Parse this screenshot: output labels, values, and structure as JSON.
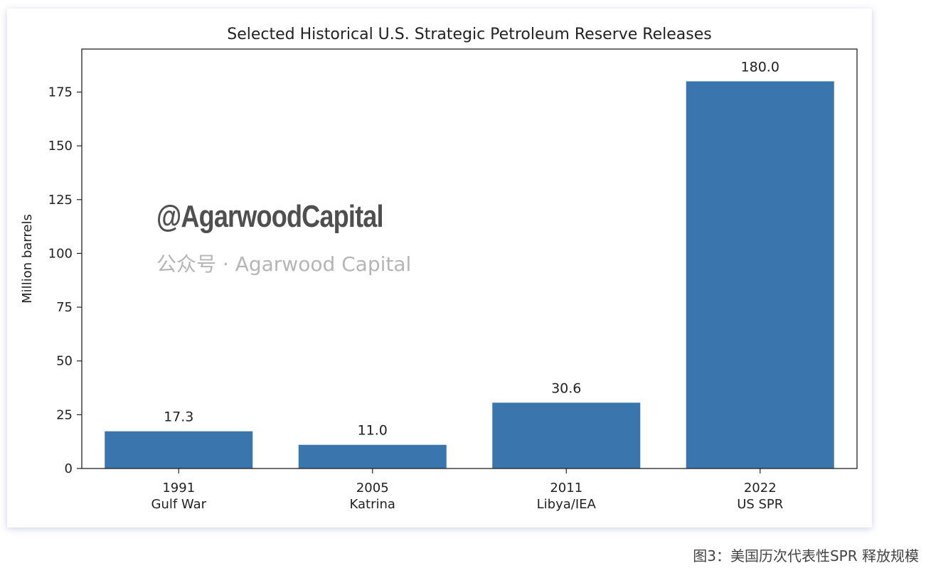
{
  "chart_data": {
    "type": "bar",
    "title": "Selected Historical U.S. Strategic Petroleum Reserve Releases",
    "xlabel": "",
    "ylabel": "Million barrels",
    "categories": [
      {
        "year": "1991",
        "event": "Gulf War"
      },
      {
        "year": "2005",
        "event": "Katrina"
      },
      {
        "year": "2011",
        "event": "Libya/IEA"
      },
      {
        "year": "2022",
        "event": "US SPR"
      }
    ],
    "values": [
      17.3,
      11.0,
      30.6,
      180.0
    ],
    "data_labels": [
      "17.3",
      "11.0",
      "30.6",
      "180.0"
    ],
    "ylim": [
      0,
      195
    ],
    "yticks": [
      0,
      25,
      50,
      75,
      100,
      125,
      150,
      175
    ],
    "grid": false,
    "bar_color": "#3a75ae"
  },
  "watermark": {
    "bold": "@AgarwoodCapital",
    "faint": "公众号 · Agarwood Capital"
  },
  "caption": "图3：美国历次代表性SPR 释放规模"
}
